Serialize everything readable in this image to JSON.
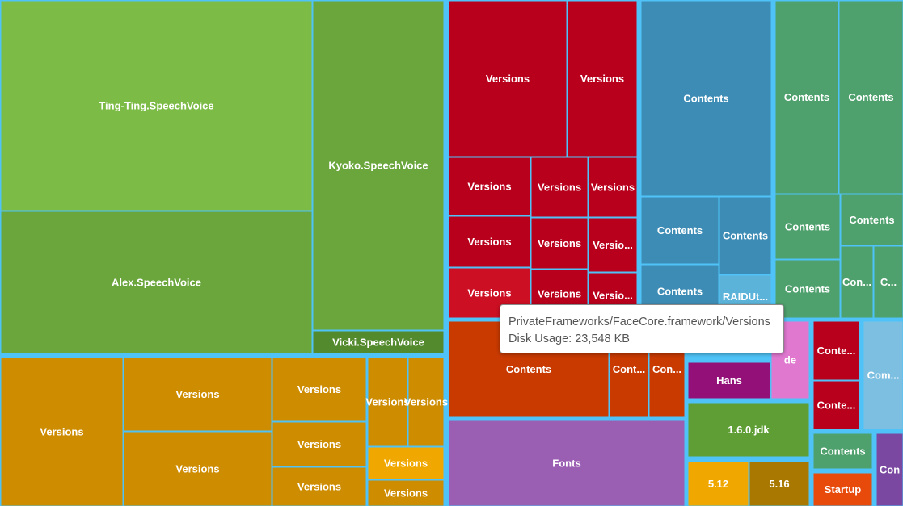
{
  "colors": {
    "group_border": "#4fc3f7",
    "cell_stroke": "#4fc3f7",
    "text": "#ffffff",
    "tooltip_bg": "#ffffff",
    "tooltip_text": "#555555"
  },
  "chart_data": {
    "type": "treemap",
    "metric": "Disk Usage",
    "unit": "KB",
    "groups": [
      {
        "color": "#7cbb45",
        "cells": [
          {
            "label": "Ting-Ting.SpeechVoice",
            "color": "#7cbb45"
          },
          {
            "label": "Alex.SpeechVoice",
            "color": "#6aa63c"
          },
          {
            "label": "Kyoko.SpeechVoice",
            "color": "#6aa63c"
          },
          {
            "label": "Vicki.SpeechVoice",
            "color": "#548a2e"
          }
        ]
      },
      {
        "color": "#ce8c00",
        "cells": [
          {
            "label": "Versions",
            "color": "#ce8c00"
          },
          {
            "label": "Versions",
            "color": "#ce8c00"
          },
          {
            "label": "Versions",
            "color": "#ce8c00"
          },
          {
            "label": "Versions",
            "color": "#ce8c00"
          },
          {
            "label": "Versions",
            "color": "#ce8c00"
          },
          {
            "label": "Versions",
            "color": "#ce8c00"
          },
          {
            "label": "Versions",
            "color": "#ce8c00"
          },
          {
            "label": "Versions",
            "color": "#ce8c00"
          },
          {
            "label": "Versions",
            "color": "#f0a800"
          },
          {
            "label": "Versions",
            "color": "#ce8c00"
          }
        ]
      },
      {
        "color": "#b8001c",
        "cells": [
          {
            "label": "Versions",
            "color": "#b8001c"
          },
          {
            "label": "Versions",
            "color": "#b8001c"
          },
          {
            "label": "Versions",
            "color": "#b8001c"
          },
          {
            "label": "Versions",
            "color": "#b8001c"
          },
          {
            "label": "Versions",
            "color": "#b8001c"
          },
          {
            "label": "Versions",
            "color": "#b8001c"
          },
          {
            "label": "Versions",
            "color": "#b8001c"
          },
          {
            "label": "Versio...",
            "color": "#b8001c"
          },
          {
            "label": "Versions",
            "color": "#cc0f23"
          },
          {
            "label": "Versions",
            "color": "#b8001c"
          },
          {
            "label": "Versio...",
            "color": "#b8001c"
          }
        ]
      },
      {
        "color": "#3d8cb5",
        "cells": [
          {
            "label": "Contents",
            "color": "#3d8cb5"
          },
          {
            "label": "Contents",
            "color": "#3d8cb5"
          },
          {
            "label": "Contents",
            "color": "#3d8cb5"
          },
          {
            "label": "Contents",
            "color": "#3d8cb5"
          },
          {
            "label": "RAIDUt...",
            "color": "#5cb3d9"
          }
        ]
      },
      {
        "color": "#4ea06c",
        "cells": [
          {
            "label": "Contents",
            "color": "#4ea06c"
          },
          {
            "label": "Contents",
            "color": "#4ea06c"
          },
          {
            "label": "Contents",
            "color": "#4ea06c"
          },
          {
            "label": "Contents",
            "color": "#4ea06c"
          },
          {
            "label": "Contents",
            "color": "#4ea06c"
          },
          {
            "label": "Con...",
            "color": "#4ea06c"
          },
          {
            "label": "C...",
            "color": "#4ea06c"
          }
        ]
      },
      {
        "color": "#c83a00",
        "cells": [
          {
            "label": "Contents",
            "color": "#c83a00"
          },
          {
            "label": "Cont...",
            "color": "#c83a00"
          },
          {
            "label": "Con...",
            "color": "#c83a00"
          }
        ]
      },
      {
        "color": "#9a5fb3",
        "cells": [
          {
            "label": "Fonts",
            "color": "#9a5fb3"
          }
        ]
      },
      {
        "color": "#9b147e",
        "cells": [
          {
            "label": "Hans",
            "color": "#921078"
          },
          {
            "label": "de",
            "color": "#e078d0"
          }
        ]
      },
      {
        "color": "#b8001c",
        "cells": [
          {
            "label": "Conte...",
            "color": "#b8001c"
          },
          {
            "label": "Conte...",
            "color": "#b8001c"
          }
        ]
      },
      {
        "color": "#7cbfe0",
        "cells": [
          {
            "label": "Com...",
            "color": "#7cbfe0"
          }
        ]
      },
      {
        "color": "#5e9e34",
        "cells": [
          {
            "label": "1.6.0.jdk",
            "color": "#5e9e34"
          }
        ]
      },
      {
        "color": "#4ea06c",
        "cells": [
          {
            "label": "Contents",
            "color": "#4ea06c"
          }
        ]
      },
      {
        "color": "#7a48a0",
        "cells": [
          {
            "label": "Con",
            "color": "#7a48a0"
          }
        ]
      },
      {
        "color": "#e8a100",
        "cells": [
          {
            "label": "5.12",
            "color": "#f0a800"
          },
          {
            "label": "5.16",
            "color": "#a87800"
          }
        ]
      },
      {
        "color": "#e84a0c",
        "cells": [
          {
            "label": "Startup",
            "color": "#e84a0c"
          }
        ]
      }
    ],
    "tooltip": {
      "path": "PrivateFrameworks/FaceCore.framework/Versions",
      "value": 23548,
      "text": "Disk Usage: 23,548 KB"
    }
  }
}
